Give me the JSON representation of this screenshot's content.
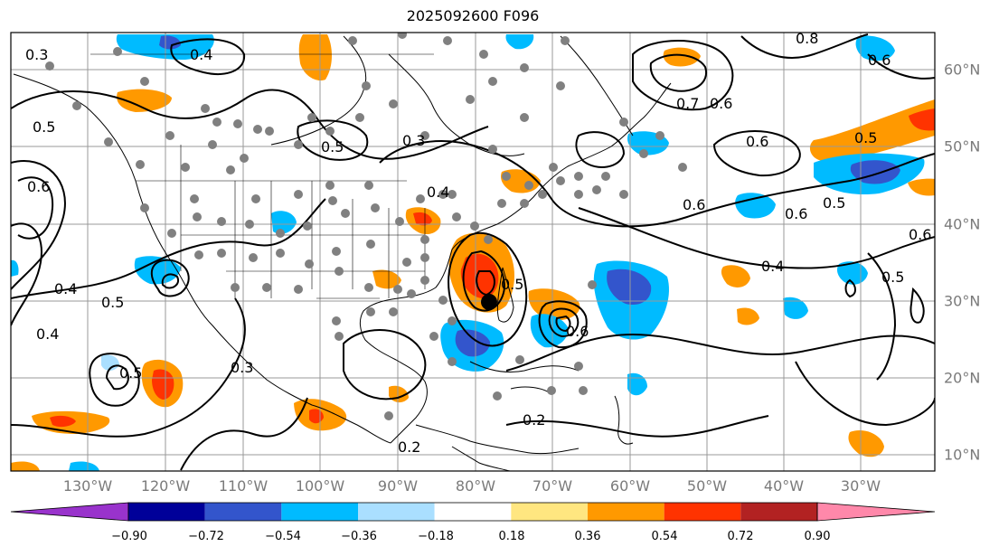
{
  "title": "2025092600 F096",
  "map": {
    "lon_labels": [
      "130°W",
      "120°W",
      "110°W",
      "100°W",
      "90°W",
      "80°W",
      "70°W",
      "60°W",
      "50°W",
      "40°W",
      "30°W"
    ],
    "lat_labels": [
      "60°N",
      "50°N",
      "40°N",
      "30°N",
      "20°N",
      "10°N"
    ],
    "contour_labels": [
      "0.3",
      "0.4",
      "0.5",
      "0.6",
      "0.4",
      "0.5",
      "0.3",
      "0.6",
      "0.7",
      "0.6",
      "0.6",
      "0.5",
      "0.6",
      "0.5",
      "0.4",
      "0.4",
      "0.5",
      "0.6",
      "0.3",
      "0.2",
      "0.2",
      "0.5",
      "0.6",
      "0.5",
      "0.5",
      "0.4",
      "0.6",
      "0.8"
    ],
    "colors": {
      "gridline": "#999999",
      "contour": "#000000",
      "stations": "#808080",
      "center_marker": "#000000"
    },
    "fill_levels": [
      {
        "range": "0.36-0.54",
        "color": "#ff9900"
      },
      {
        "range": "0.54-0.72",
        "color": "#ff3300"
      },
      {
        "range": "-0.54--0.36",
        "color": "#00bbff"
      },
      {
        "range": "-0.72--0.54",
        "color": "#3355cc"
      },
      {
        "range": "-0.36--0.18",
        "color": "#aadfff"
      }
    ]
  },
  "colorbar": {
    "ticks": [
      "−0.90",
      "−0.72",
      "−0.54",
      "−0.36",
      "−0.18",
      "0.18",
      "0.36",
      "0.54",
      "0.72",
      "0.90"
    ],
    "colors": [
      "#9933cc",
      "#000099",
      "#3355cc",
      "#00bbff",
      "#aadfff",
      "#ffffff",
      "#ffe680",
      "#ff9900",
      "#ff3300",
      "#b22222",
      "#ff88aa"
    ]
  }
}
